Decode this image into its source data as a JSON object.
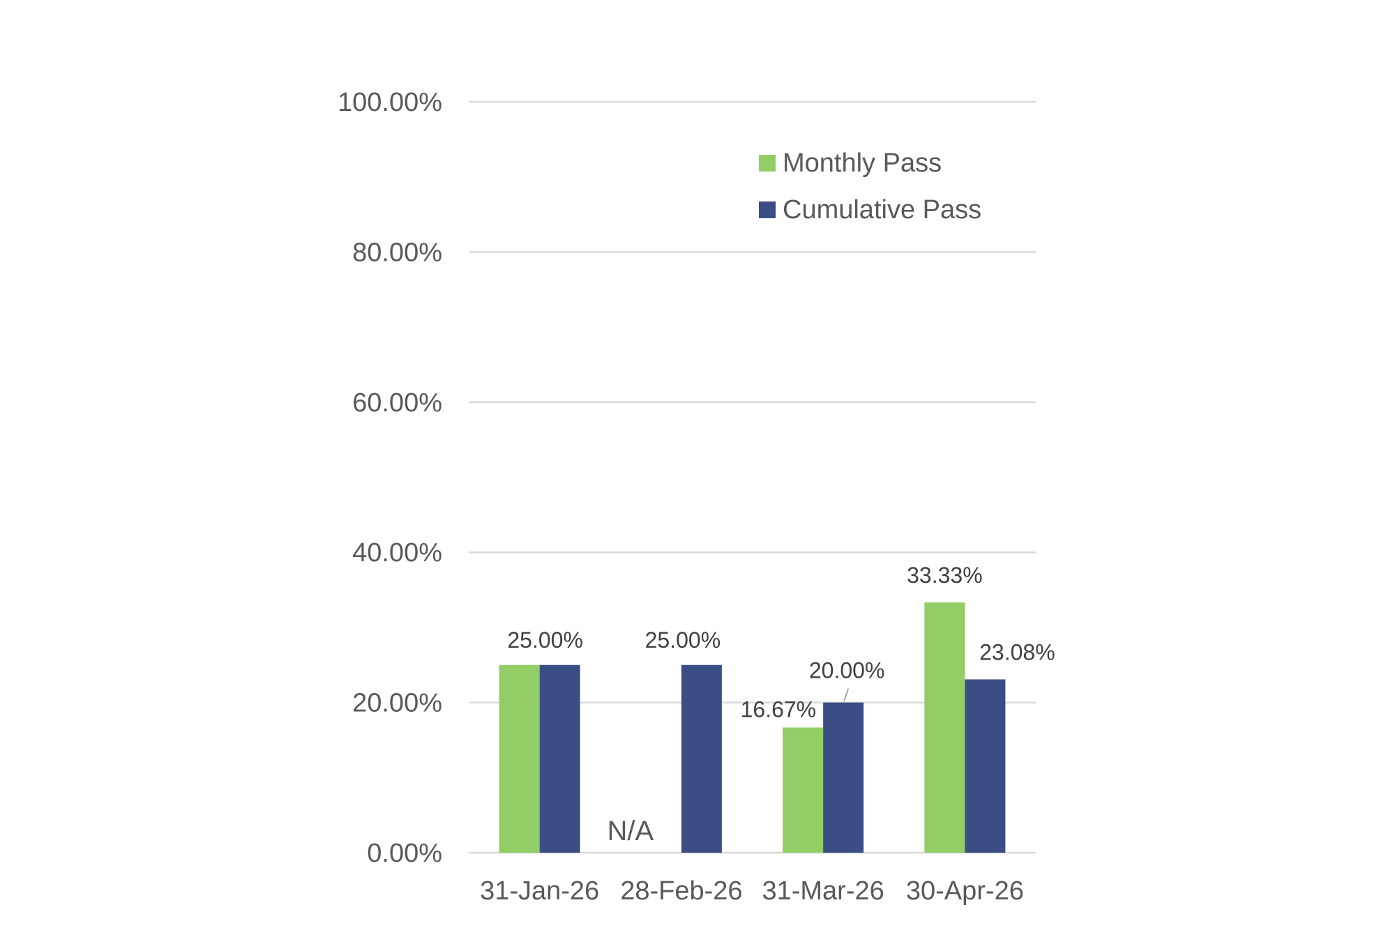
{
  "chart_data": {
    "type": "bar",
    "categories": [
      "31-Jan-26",
      "28-Feb-26",
      "31-Mar-26",
      "30-Apr-26"
    ],
    "series": [
      {
        "name": "Monthly Pass",
        "color": "#92cd66",
        "values": [
          25.0,
          null,
          16.67,
          33.33
        ],
        "labels": [
          "25.00%",
          "N/A",
          "16.67%",
          "33.33%"
        ]
      },
      {
        "name": "Cumulative Pass",
        "color": "#3a4d84",
        "values": [
          25.0,
          25.0,
          20.0,
          23.08
        ],
        "labels": [
          "25.00%",
          "25.00%",
          "20.00%",
          "23.08%"
        ]
      }
    ],
    "y_ticks": [
      "0.00%",
      "20.00%",
      "40.00%",
      "60.00%",
      "80.00%",
      "100.00%"
    ],
    "ylim": [
      0,
      100
    ],
    "grid": true,
    "legend_position": "top-right"
  }
}
